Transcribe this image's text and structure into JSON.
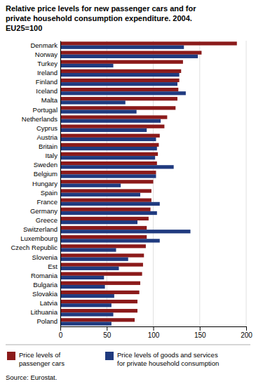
{
  "chart_data": {
    "type": "bar",
    "orientation": "horizontal",
    "title": "Relative price levels for new passenger cars and for\nprivate household consumption expenditure. 2004.\nEU25=100",
    "annotations": [
      "Source: Eurostat."
    ],
    "categories": [
      "Denmark",
      "Norway",
      "Turkey",
      "Ireland",
      "Finland",
      "Iceland",
      "Malta",
      "Portugal",
      "Netherlands",
      "Cyprus",
      "Austria",
      "Britain",
      "Italy",
      "Sweden",
      "Belgium",
      "Hungary",
      "Spain",
      "France",
      "Germany",
      "Greece",
      "Switzerland",
      "Luxembourg",
      "Czech Republic",
      "Slovenia",
      "Est",
      "Romania",
      "Bulgaria",
      "Slovakia",
      "Latvia",
      "Lithuania",
      "Poland"
    ],
    "series": [
      {
        "name": "Price levels of\npassenger cars",
        "color": "#8B1A1A",
        "values": [
          190,
          152,
          132,
          130,
          128,
          127,
          126,
          124,
          115,
          112,
          107,
          106,
          105,
          104,
          103,
          100,
          98,
          98,
          97,
          95,
          93,
          93,
          92,
          90,
          89,
          88,
          86,
          85,
          83,
          83,
          80
        ]
      },
      {
        "name": "Price levels of goods and services\nfor private household consumption",
        "color": "#1F3A7F",
        "values": [
          133,
          148,
          57,
          128,
          126,
          135,
          70,
          82,
          108,
          93,
          103,
          104,
          102,
          122,
          103,
          65,
          86,
          107,
          104,
          83,
          140,
          107,
          60,
          73,
          63,
          47,
          48,
          58,
          55,
          57,
          55
        ]
      }
    ],
    "xlim": [
      0,
      200
    ],
    "xticks": [
      0,
      50,
      100,
      150,
      200
    ],
    "grid": true,
    "legend": "bottom"
  }
}
